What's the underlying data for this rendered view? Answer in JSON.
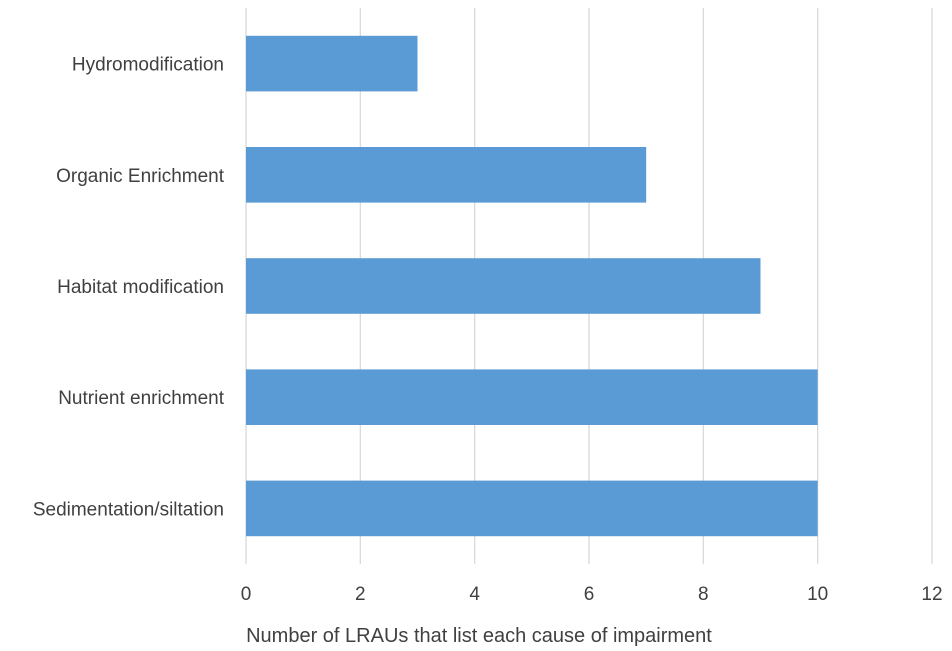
{
  "chart_data": {
    "type": "bar",
    "orientation": "horizontal",
    "title": "",
    "xlabel": "Number of LRAUs that list each cause of impairment",
    "ylabel": "",
    "categories": [
      "Hydromodification",
      "Organic Enrichment",
      "Habitat modification",
      "Nutrient enrichment",
      "Sedimentation/siltation"
    ],
    "values": [
      3,
      7,
      9,
      10,
      10
    ],
    "xlim": [
      0,
      12
    ],
    "xticks": [
      "0",
      "2",
      "4",
      "6",
      "8",
      "10",
      "12"
    ],
    "grid": true,
    "legend": "none",
    "bar_color": "#5b9bd5"
  }
}
